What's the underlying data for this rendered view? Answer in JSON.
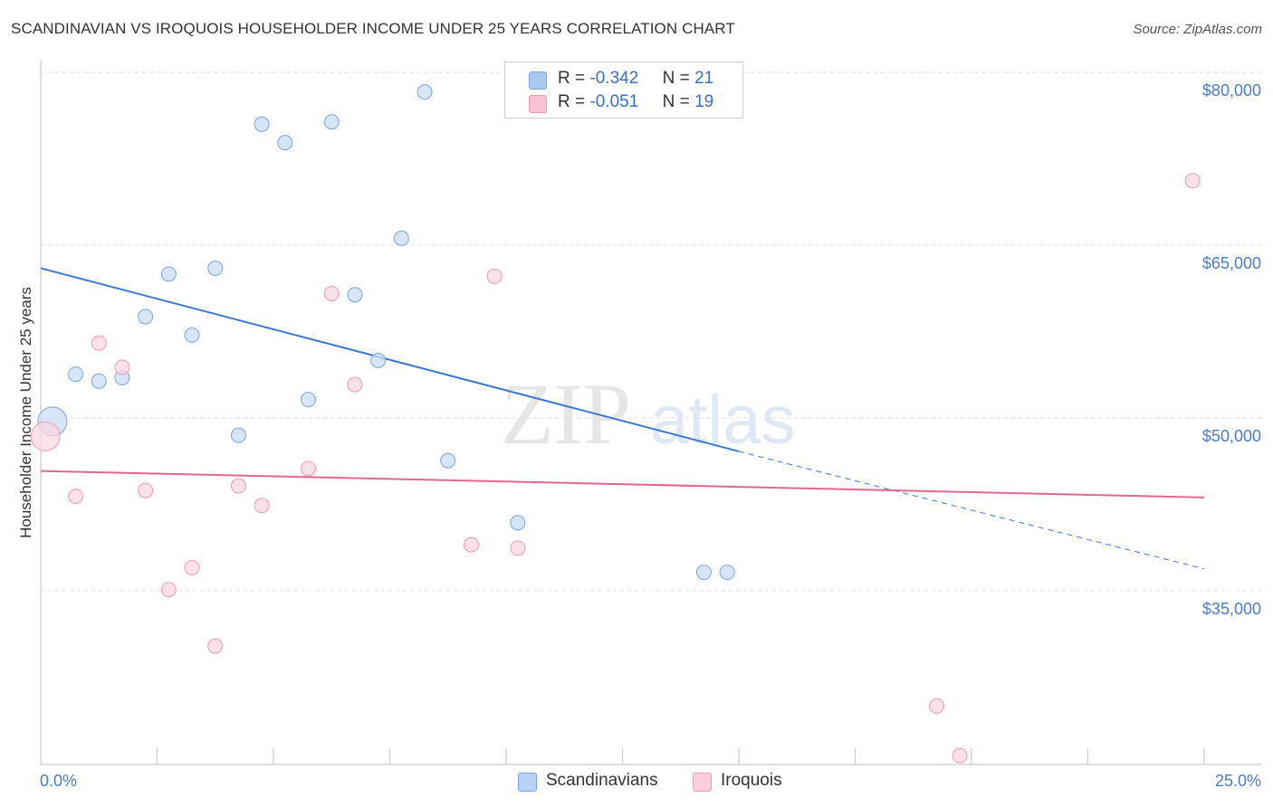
{
  "title": "SCANDINAVIAN VS IROQUOIS HOUSEHOLDER INCOME UNDER 25 YEARS CORRELATION CHART",
  "source": "Source: ZipAtlas.com",
  "watermark": {
    "zip": "ZIP",
    "atlas": "atlas"
  },
  "legend": {
    "rows": [
      {
        "r_label": "R =",
        "r_value": "-0.342",
        "n_label": "N =",
        "n_value": "21",
        "color": "#aac8f0",
        "border": "#7aa6e0"
      },
      {
        "r_label": "R =",
        "r_value": "-0.051",
        "n_label": "N =",
        "n_value": "19",
        "color": "#f7c3d3",
        "border": "#ee9ab5"
      }
    ]
  },
  "bottom_legend": [
    {
      "label": "Scandinavians",
      "color": "#b9d2f3",
      "border": "#7aa6e0"
    },
    {
      "label": "Iroquois",
      "color": "#f9cdd9",
      "border": "#ee9ab5"
    }
  ],
  "chart_data": {
    "type": "scatter",
    "title": "SCANDINAVIAN VS IROQUOIS HOUSEHOLDER INCOME UNDER 25 YEARS CORRELATION CHART",
    "xlabel": "",
    "ylabel": "Householder Income Under 25 years",
    "xlim": [
      0,
      25
    ],
    "ylim": [
      20000,
      82000
    ],
    "x_tick_labels": [
      "0.0%",
      "25.0%"
    ],
    "y_ticks": [
      35000,
      50000,
      65000,
      80000
    ],
    "y_tick_labels": [
      "$35,000",
      "$50,000",
      "$65,000",
      "$80,000"
    ],
    "series": [
      {
        "name": "Scandinavians",
        "color": "#7aa6e0",
        "fill": "#c8dcf5",
        "points": [
          {
            "x": 0.25,
            "y": 49700,
            "big": true
          },
          {
            "x": 0.75,
            "y": 53800
          },
          {
            "x": 1.25,
            "y": 53200
          },
          {
            "x": 1.75,
            "y": 53500
          },
          {
            "x": 2.25,
            "y": 58800
          },
          {
            "x": 2.75,
            "y": 62500
          },
          {
            "x": 3.25,
            "y": 57200
          },
          {
            "x": 3.75,
            "y": 63000
          },
          {
            "x": 4.25,
            "y": 48500
          },
          {
            "x": 4.75,
            "y": 75500
          },
          {
            "x": 5.25,
            "y": 73900
          },
          {
            "x": 5.75,
            "y": 51600
          },
          {
            "x": 6.25,
            "y": 75700
          },
          {
            "x": 6.75,
            "y": 60700
          },
          {
            "x": 7.25,
            "y": 55000
          },
          {
            "x": 7.75,
            "y": 65600
          },
          {
            "x": 8.25,
            "y": 78300
          },
          {
            "x": 8.75,
            "y": 46300
          },
          {
            "x": 10.25,
            "y": 40900
          },
          {
            "x": 14.25,
            "y": 36600
          },
          {
            "x": 14.75,
            "y": 36600
          }
        ],
        "trend": {
          "x0": 0,
          "y0": 63000,
          "x1": 15,
          "y1": 47100,
          "dash_x1": 25,
          "dash_y1": 36900
        }
      },
      {
        "name": "Iroquois",
        "color": "#ee9ab5",
        "fill": "#fbd7e2",
        "points": [
          {
            "x": 0.1,
            "y": 48400,
            "big": true
          },
          {
            "x": 0.75,
            "y": 43200
          },
          {
            "x": 1.25,
            "y": 56500
          },
          {
            "x": 1.75,
            "y": 54400
          },
          {
            "x": 2.25,
            "y": 43700
          },
          {
            "x": 2.75,
            "y": 35100
          },
          {
            "x": 3.25,
            "y": 37000
          },
          {
            "x": 3.75,
            "y": 30200
          },
          {
            "x": 4.25,
            "y": 44100
          },
          {
            "x": 4.75,
            "y": 42400
          },
          {
            "x": 5.75,
            "y": 45600
          },
          {
            "x": 6.25,
            "y": 60800
          },
          {
            "x": 6.75,
            "y": 52900
          },
          {
            "x": 9.25,
            "y": 39000
          },
          {
            "x": 9.75,
            "y": 62300
          },
          {
            "x": 10.25,
            "y": 38700
          },
          {
            "x": 19.25,
            "y": 25000
          },
          {
            "x": 19.75,
            "y": 20700
          },
          {
            "x": 24.75,
            "y": 70600
          }
        ],
        "trend": {
          "x0": 0,
          "y0": 45400,
          "x1": 25,
          "y1": 43100
        }
      }
    ]
  }
}
